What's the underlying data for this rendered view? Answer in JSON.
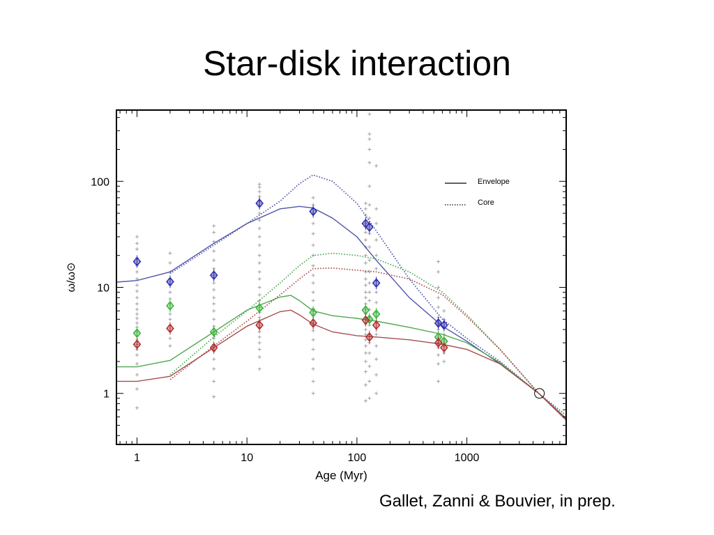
{
  "slide": {
    "title": "Star-disk interaction",
    "citation": "Gallet, Zanni & Bouvier, in prep."
  },
  "chart_data": {
    "type": "line",
    "xscale": "log",
    "yscale": "log",
    "xlim": [
      0.65,
      8000
    ],
    "ylim": [
      0.33,
      470
    ],
    "xlabel": "Age (Myr)",
    "ylabel": "ω/ω⊙",
    "xticks": [
      1,
      10,
      100,
      1000
    ],
    "xtick_labels": [
      "1",
      "10",
      "100",
      "1000"
    ],
    "yticks": [
      1,
      10,
      100
    ],
    "ytick_labels": [
      "1",
      "10",
      "100"
    ],
    "grid": false,
    "legend": {
      "placement": "top-right",
      "entries": [
        {
          "label": "Envelope",
          "style": "solid"
        },
        {
          "label": "Core",
          "style": "dotted"
        }
      ]
    },
    "colors": {
      "blue": "#5055a8",
      "green": "#4ea84e",
      "red": "#a84d4d",
      "blue_mark": "#2e2eb0",
      "green_mark": "#3cb43c",
      "red_mark": "#b03030",
      "data": "#9a9a9a"
    },
    "series": [
      {
        "group": "fast",
        "color": "blue",
        "kind": "envelope",
        "x": [
          0.65,
          1,
          2,
          5,
          10,
          20,
          30,
          40,
          60,
          100,
          150,
          300,
          600,
          1000,
          2000,
          4500,
          8000
        ],
        "y": [
          11.2,
          11.6,
          14,
          26,
          40,
          55,
          58,
          56,
          45,
          30,
          18,
          8,
          4.3,
          3.1,
          1.9,
          1.0,
          0.58
        ]
      },
      {
        "group": "fast",
        "color": "blue",
        "kind": "core",
        "x": [
          2,
          5,
          10,
          20,
          30,
          40,
          60,
          100,
          150,
          300,
          600,
          1000,
          2000,
          4500,
          8000
        ],
        "y": [
          13.5,
          25,
          40,
          65,
          95,
          115,
          100,
          62,
          34,
          12,
          5,
          3.3,
          2.0,
          1.0,
          0.62
        ]
      },
      {
        "group": "medium",
        "color": "green",
        "kind": "envelope",
        "x": [
          0.65,
          1,
          2,
          5,
          10,
          20,
          25,
          30,
          40,
          60,
          100,
          150,
          300,
          600,
          1000,
          2000,
          4500,
          8000
        ],
        "y": [
          1.78,
          1.78,
          2.05,
          3.8,
          6.1,
          8.1,
          8.4,
          7.5,
          6.0,
          5.4,
          5.1,
          4.8,
          4.2,
          3.6,
          3.0,
          1.95,
          1.0,
          0.56
        ]
      },
      {
        "group": "medium",
        "color": "green",
        "kind": "core",
        "x": [
          2,
          5,
          10,
          20,
          30,
          40,
          60,
          100,
          150,
          300,
          600,
          1000,
          2000,
          4500,
          8000
        ],
        "y": [
          1.5,
          3.4,
          6.0,
          11,
          16,
          20,
          21,
          20,
          18.5,
          14,
          9,
          5.5,
          2.6,
          1.0,
          0.58
        ]
      },
      {
        "group": "slow",
        "color": "red",
        "kind": "envelope",
        "x": [
          0.65,
          1,
          2,
          5,
          10,
          20,
          25,
          30,
          40,
          60,
          100,
          150,
          300,
          600,
          1000,
          2000,
          4500,
          8000
        ],
        "y": [
          1.3,
          1.3,
          1.45,
          2.7,
          4.3,
          5.9,
          6.1,
          5.5,
          4.5,
          3.8,
          3.5,
          3.4,
          3.2,
          2.9,
          2.6,
          1.9,
          1.0,
          0.56
        ]
      },
      {
        "group": "slow",
        "color": "red",
        "kind": "core",
        "x": [
          2,
          5,
          10,
          20,
          30,
          40,
          60,
          100,
          150,
          300,
          600,
          1000,
          2000,
          4500,
          8000
        ],
        "y": [
          1.35,
          2.8,
          4.8,
          8.5,
          12,
          15,
          15.2,
          14.5,
          14,
          12,
          8.5,
          5.3,
          2.6,
          1.0,
          0.58
        ]
      }
    ],
    "markers": [
      {
        "group": "fast",
        "color": "blue_mark",
        "x": [
          1,
          2,
          5,
          13,
          40,
          120,
          130,
          150,
          550,
          620
        ],
        "y": [
          17.5,
          11.3,
          13,
          62,
          52,
          40,
          37,
          11,
          4.6,
          4.4
        ]
      },
      {
        "group": "medium",
        "color": "green_mark",
        "x": [
          1,
          2,
          5,
          13,
          40,
          120,
          130,
          150,
          550,
          620
        ],
        "y": [
          3.7,
          6.7,
          3.8,
          6.4,
          5.8,
          6.1,
          5.0,
          5.6,
          3.4,
          3.1
        ]
      },
      {
        "group": "slow",
        "color": "red_mark",
        "x": [
          1,
          2,
          5,
          13,
          40,
          120,
          130,
          150,
          550,
          620
        ],
        "y": [
          2.9,
          4.1,
          2.7,
          4.4,
          4.6,
          4.9,
          3.4,
          4.4,
          3.0,
          2.7
        ]
      }
    ],
    "sun": {
      "x": 4570,
      "y": 1.0
    },
    "observations": [
      {
        "x": 1,
        "y": [
          0.73,
          1.1,
          1.5,
          1.9,
          2.3,
          2.6,
          2.9,
          3.2,
          3.5,
          3.8,
          4.2,
          4.6,
          5.1,
          5.6,
          6.2,
          7,
          8,
          9.2,
          10.5,
          12,
          14,
          16,
          19,
          23,
          26,
          30
        ]
      },
      {
        "x": 2,
        "y": [
          2.8,
          3.3,
          3.9,
          4.4,
          5.0,
          5.6,
          6.3,
          7.0,
          7.8,
          9,
          10.5,
          12,
          14,
          17,
          21
        ]
      },
      {
        "x": 5,
        "y": [
          0.93,
          1.3,
          1.7,
          2.1,
          2.5,
          2.9,
          3.3,
          3.8,
          4.3,
          5,
          6,
          7,
          8,
          9.5,
          11,
          13,
          15,
          18,
          22,
          27,
          33,
          38
        ]
      },
      {
        "x": 13,
        "y": [
          1.7,
          2.2,
          2.6,
          3.0,
          3.4,
          3.8,
          4.2,
          4.7,
          5.2,
          5.8,
          6.5,
          7.5,
          8.5,
          10,
          12,
          14,
          17,
          20,
          25,
          30,
          36,
          43,
          50,
          58,
          65,
          72,
          80,
          88,
          94
        ]
      },
      {
        "x": 40,
        "y": [
          1.0,
          1.3,
          1.7,
          2.1,
          2.6,
          3.2,
          3.9,
          4.6,
          5.4,
          6.3,
          7.5,
          9,
          11,
          13,
          16,
          20,
          25,
          32,
          40,
          50,
          60,
          70
        ]
      },
      {
        "x": 120,
        "y": [
          0.85,
          1.2,
          1.6,
          2.0,
          2.4,
          2.8,
          3.2,
          3.6,
          4.0,
          4.5,
          5.0,
          5.6,
          6.2,
          7.0,
          8,
          9,
          10.5,
          12,
          14,
          17,
          20,
          24,
          28,
          33,
          40,
          48,
          55,
          62
        ]
      },
      {
        "x": 130,
        "y": [
          0.9,
          1.3,
          1.8,
          2.4,
          3.0,
          3.6,
          4.4,
          5.2,
          6.2,
          7.5,
          9,
          11,
          14,
          18,
          24,
          32,
          45,
          60,
          90,
          150,
          200,
          250,
          280,
          430
        ]
      },
      {
        "x": 150,
        "y": [
          1.0,
          1.5,
          2.1,
          2.8,
          3.6,
          4.6,
          5.8,
          7.2,
          9,
          11.5,
          15,
          20,
          28,
          40,
          55,
          140
        ]
      },
      {
        "x": 550,
        "y": [
          1.3,
          1.9,
          2.3,
          2.7,
          3.0,
          3.3,
          3.6,
          4.0,
          4.5,
          5.2,
          6.5,
          8,
          10,
          14,
          17.5
        ]
      },
      {
        "x": 620,
        "y": [
          2.0,
          2.4,
          2.8,
          3.2,
          3.6,
          4.2,
          5,
          6
        ]
      }
    ]
  }
}
